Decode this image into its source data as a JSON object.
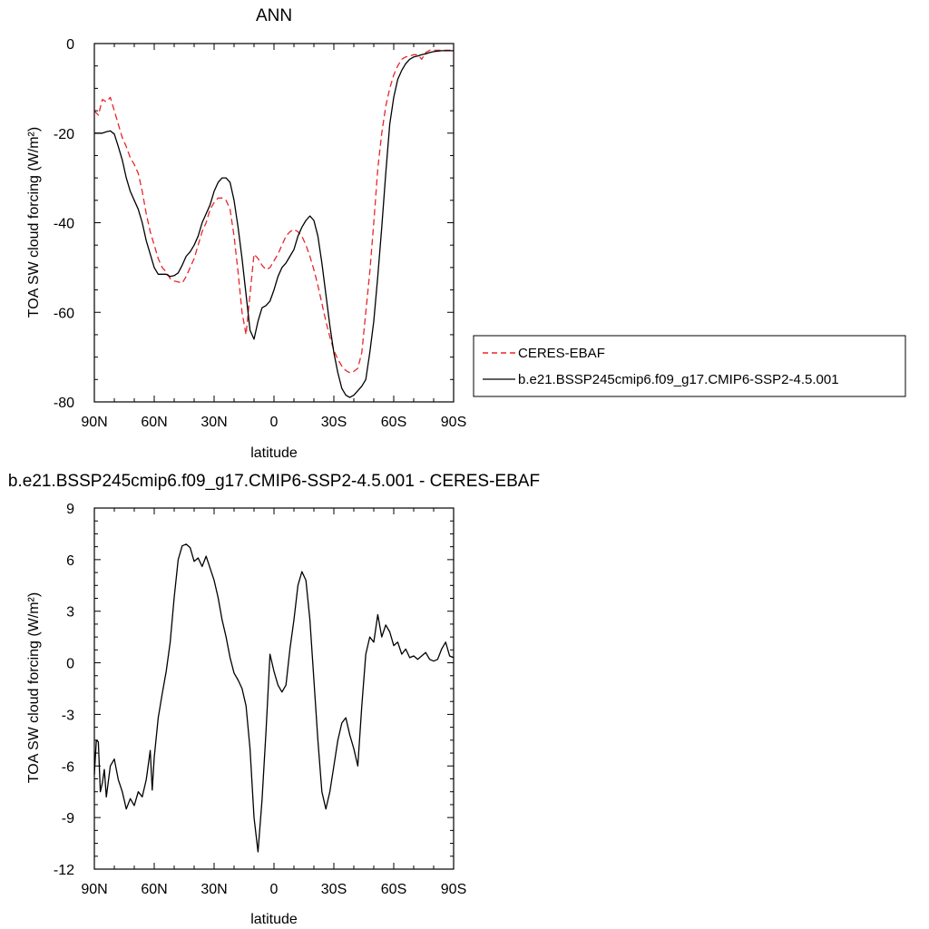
{
  "chart_data": [
    {
      "type": "line",
      "title": "ANN",
      "xlabel": "latitude",
      "ylabel": "TOA SW cloud forcing (W/m²)",
      "xlim": [
        90,
        -90
      ],
      "ylim": [
        -80,
        0
      ],
      "x_ticks": [
        90,
        60,
        30,
        0,
        -30,
        -60,
        -90
      ],
      "x_tick_labels": [
        "90N",
        "60N",
        "30N",
        "0",
        "30S",
        "60S",
        "90S"
      ],
      "y_ticks": [
        -80,
        -60,
        -40,
        -20,
        0
      ],
      "y_tick_labels": [
        "-80",
        "-60",
        "-40",
        "-20",
        "0"
      ],
      "legend": {
        "placement": "right",
        "entries": [
          "CERES-EBAF",
          "b.e21.BSSP245cmip6.f09_g17.CMIP6-SSP2-4.5.001"
        ]
      },
      "series": [
        {
          "name": "CERES-EBAF",
          "style": "dashed",
          "color": "#e8262a",
          "x": [
            90,
            88,
            86,
            84,
            82,
            80,
            78,
            76,
            74,
            72,
            70,
            68,
            66,
            64,
            62,
            60,
            58,
            56,
            54,
            52,
            50,
            48,
            46,
            44,
            42,
            40,
            38,
            36,
            34,
            32,
            30,
            28,
            26,
            24,
            22,
            20,
            18,
            16,
            14,
            12,
            10,
            8,
            6,
            4,
            2,
            0,
            -2,
            -4,
            -6,
            -8,
            -10,
            -12,
            -14,
            -16,
            -18,
            -20,
            -22,
            -24,
            -26,
            -28,
            -30,
            -32,
            -34,
            -36,
            -38,
            -40,
            -42,
            -44,
            -46,
            -48,
            -50,
            -52,
            -54,
            -56,
            -58,
            -60,
            -62,
            -64,
            -66,
            -68,
            -70,
            -72,
            -74,
            -76,
            -78,
            -80,
            -82,
            -84,
            -86,
            -88,
            -90
          ],
          "y": [
            -15,
            -16,
            -12.5,
            -13,
            -12,
            -15,
            -18,
            -21,
            -23,
            -25.5,
            -27,
            -29,
            -33,
            -38,
            -42,
            -45,
            -48,
            -50,
            -51,
            -52.5,
            -53,
            -53.2,
            -53.5,
            -52,
            -50,
            -48,
            -45,
            -42,
            -40,
            -37,
            -35.5,
            -34.5,
            -34.5,
            -35,
            -37,
            -43,
            -51,
            -60,
            -65,
            -56,
            -47,
            -48,
            -49.5,
            -50.5,
            -50,
            -48.5,
            -47,
            -45,
            -43,
            -42,
            -41.5,
            -42,
            -43,
            -45,
            -47.5,
            -50.5,
            -54,
            -58,
            -62,
            -65.5,
            -68.5,
            -70.5,
            -72,
            -73,
            -73.5,
            -73.2,
            -72.5,
            -69,
            -60,
            -51,
            -40,
            -28,
            -20,
            -14,
            -10,
            -7,
            -5,
            -3.5,
            -3,
            -2.8,
            -2.5,
            -2.5,
            -3.5,
            -2,
            -1.5,
            -1.5,
            -1.5,
            -1.5,
            -1.5,
            -1.5,
            -1.5
          ]
        },
        {
          "name": "b.e21.BSSP245cmip6.f09_g17.CMIP6-SSP2-4.5.001",
          "style": "solid",
          "color": "#000000",
          "x": [
            90,
            88,
            86,
            84,
            82,
            80,
            78,
            76,
            74,
            72,
            70,
            68,
            66,
            64,
            62,
            60,
            58,
            56,
            54,
            52,
            50,
            48,
            46,
            44,
            42,
            40,
            38,
            36,
            34,
            32,
            30,
            28,
            26,
            24,
            22,
            20,
            18,
            16,
            14,
            12,
            10,
            8,
            6,
            4,
            2,
            0,
            -2,
            -4,
            -6,
            -8,
            -10,
            -12,
            -14,
            -16,
            -18,
            -20,
            -22,
            -24,
            -26,
            -28,
            -30,
            -32,
            -34,
            -36,
            -38,
            -40,
            -42,
            -44,
            -46,
            -48,
            -50,
            -52,
            -54,
            -56,
            -58,
            -60,
            -62,
            -64,
            -66,
            -68,
            -70,
            -72,
            -74,
            -76,
            -78,
            -80,
            -82,
            -84,
            -86,
            -88,
            -90
          ],
          "y": [
            -20,
            -20,
            -20,
            -19.7,
            -19.5,
            -20.2,
            -23,
            -26,
            -30,
            -33,
            -35,
            -37,
            -40,
            -44,
            -47,
            -50,
            -51.5,
            -51.5,
            -51.5,
            -52,
            -51.8,
            -51.2,
            -49.5,
            -47.5,
            -46.5,
            -45,
            -43,
            -40,
            -38,
            -36,
            -33,
            -31,
            -30,
            -30,
            -31,
            -35,
            -41,
            -48,
            -56,
            -64,
            -66,
            -62,
            -59,
            -58.5,
            -57.5,
            -55,
            -52,
            -50,
            -49,
            -47.5,
            -46,
            -43,
            -41,
            -39.5,
            -38.5,
            -39.5,
            -43,
            -49,
            -56,
            -63,
            -69,
            -73.5,
            -77,
            -78.5,
            -79,
            -78.5,
            -77.5,
            -76.5,
            -75,
            -69,
            -62,
            -52,
            -41,
            -29,
            -18,
            -12,
            -8,
            -6,
            -4.5,
            -3.5,
            -3,
            -2.8,
            -2.5,
            -2.3,
            -2,
            -1.8,
            -1.7,
            -1.6,
            -1.6,
            -1.6,
            -1.6
          ]
        }
      ]
    },
    {
      "type": "line",
      "title": "b.e21.BSSP245cmip6.f09_g17.CMIP6-SSP2-4.5.001 - CERES-EBAF",
      "xlabel": "latitude",
      "ylabel": "TOA SW cloud forcing (W/m²)",
      "xlim": [
        90,
        -90
      ],
      "ylim": [
        -12,
        9
      ],
      "x_ticks": [
        90,
        60,
        30,
        0,
        -30,
        -60,
        -90
      ],
      "x_tick_labels": [
        "90N",
        "60N",
        "30N",
        "0",
        "30S",
        "60S",
        "90S"
      ],
      "y_ticks": [
        -12,
        -9,
        -6,
        -3,
        0,
        3,
        6,
        9
      ],
      "y_tick_labels": [
        "-12",
        "-9",
        "-6",
        "-3",
        "0",
        "3",
        "6",
        "9"
      ],
      "series": [
        {
          "style": "solid",
          "color": "#000000",
          "x": [
            90,
            89,
            88,
            87,
            86,
            85,
            84,
            82,
            80,
            78,
            76,
            74,
            72,
            70,
            68,
            66,
            64,
            62,
            61,
            60,
            58,
            56,
            54,
            52,
            50,
            48,
            46,
            44,
            42,
            40,
            38,
            36,
            34,
            32,
            30,
            28,
            26,
            24,
            22,
            20,
            18,
            16,
            14,
            12,
            10,
            8,
            6,
            4,
            2,
            0,
            -2,
            -4,
            -6,
            -8,
            -10,
            -12,
            -14,
            -16,
            -18,
            -20,
            -22,
            -24,
            -26,
            -28,
            -30,
            -32,
            -34,
            -36,
            -38,
            -40,
            -42,
            -44,
            -46,
            -48,
            -50,
            -52,
            -54,
            -56,
            -58,
            -60,
            -62,
            -64,
            -66,
            -68,
            -70,
            -72,
            -74,
            -76,
            -78,
            -80,
            -82,
            -84,
            -86,
            -88,
            -90
          ],
          "y": [
            -6.5,
            -4.5,
            -4.6,
            -7.5,
            -7,
            -6.2,
            -7.8,
            -6,
            -5.6,
            -6.8,
            -7.5,
            -8.5,
            -7.9,
            -8.3,
            -7.5,
            -7.8,
            -6.8,
            -5.1,
            -7.4,
            -5.5,
            -3.2,
            -1.8,
            -0.5,
            1.2,
            3.8,
            6,
            6.8,
            6.9,
            6.7,
            5.9,
            6.1,
            5.6,
            6.2,
            5.5,
            4.8,
            3.8,
            2.5,
            1.5,
            0.3,
            -0.6,
            -1,
            -1.5,
            -2.5,
            -5,
            -9,
            -11,
            -8,
            -4,
            0.5,
            -0.5,
            -1.3,
            -1.7,
            -1.3,
            0.8,
            2.5,
            4.5,
            5.3,
            4.8,
            2.5,
            -1,
            -4.5,
            -7.5,
            -8.5,
            -7.5,
            -6,
            -4.5,
            -3.5,
            -3.2,
            -4.2,
            -5,
            -6,
            -2.5,
            0.5,
            1.5,
            1.2,
            2.8,
            1.5,
            2.2,
            1.8,
            1,
            1.2,
            0.5,
            0.8,
            0.3,
            0.4,
            0.2,
            0.4,
            0.6,
            0.2,
            0.1,
            0.2,
            0.8,
            1.2,
            0.4,
            0.3
          ]
        }
      ]
    }
  ]
}
